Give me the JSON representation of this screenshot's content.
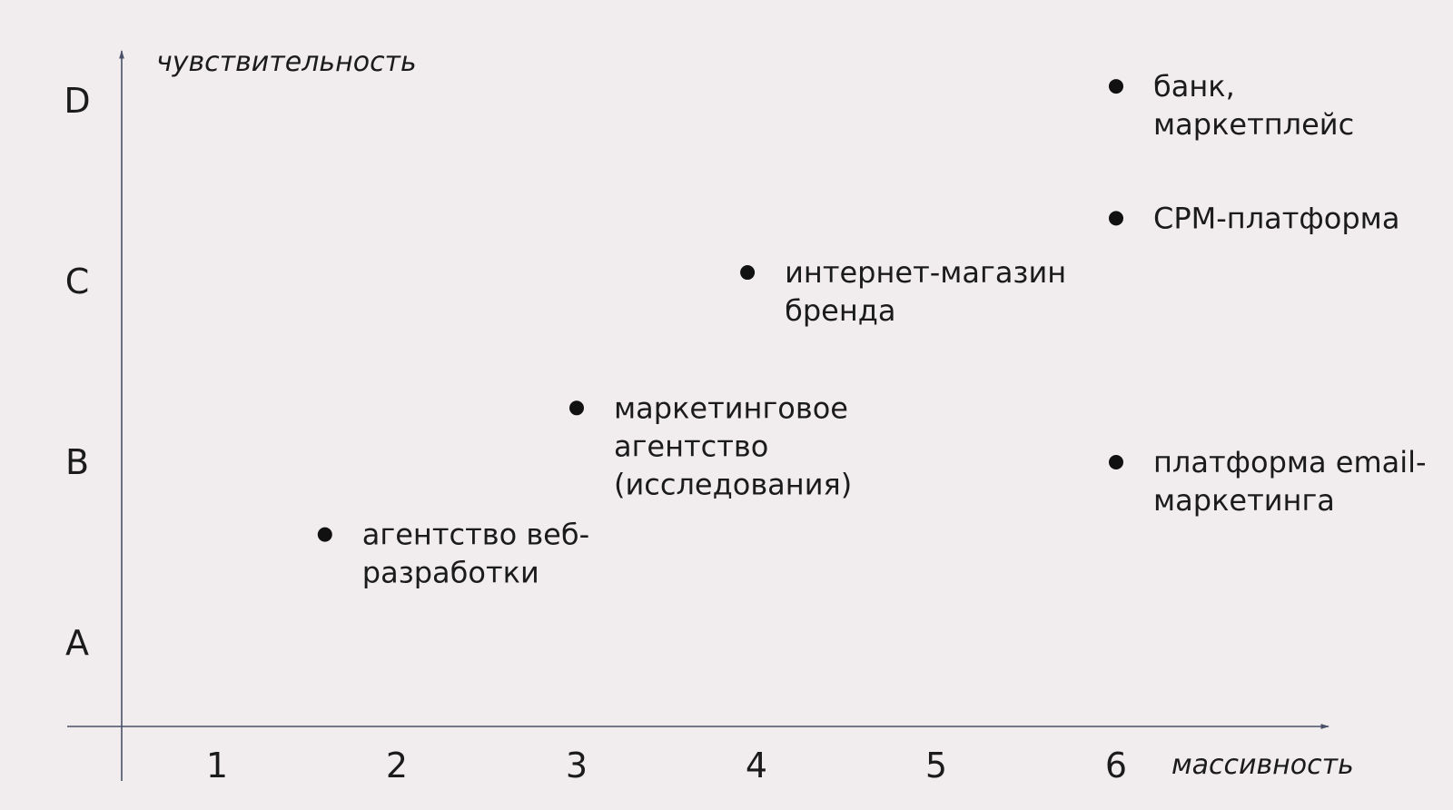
{
  "chart_data": {
    "type": "scatter",
    "xlabel": "массивность",
    "ylabel": "чувствительность",
    "x_ticks": [
      "1",
      "2",
      "3",
      "4",
      "5",
      "6"
    ],
    "y_ticks": [
      "A",
      "B",
      "C",
      "D"
    ],
    "xlim": [
      0.5,
      6.5
    ],
    "ylim": [
      "A",
      "D"
    ],
    "grid": false,
    "colors": {
      "background": "#f1edee",
      "axis": "#4a5068",
      "point": "#111111",
      "text": "#1b1b1b"
    },
    "points": [
      {
        "x": 1.6,
        "y": 1.6,
        "label": [
          "агентство веб-",
          "разработки"
        ]
      },
      {
        "x": 3.0,
        "y": 2.3,
        "label": [
          "маркетинговое",
          "агентство",
          "(исследования)"
        ]
      },
      {
        "x": 3.95,
        "y": 3.05,
        "label": [
          "интернет-магазин",
          "бренда"
        ]
      },
      {
        "x": 6.0,
        "y": 2.0,
        "label": [
          "платформа email-",
          "маркетинга"
        ]
      },
      {
        "x": 6.0,
        "y": 3.35,
        "label": [
          "CPM-платформа"
        ]
      },
      {
        "x": 6.0,
        "y": 4.08,
        "label": [
          "банк,",
          "маркетплейс"
        ]
      }
    ]
  }
}
